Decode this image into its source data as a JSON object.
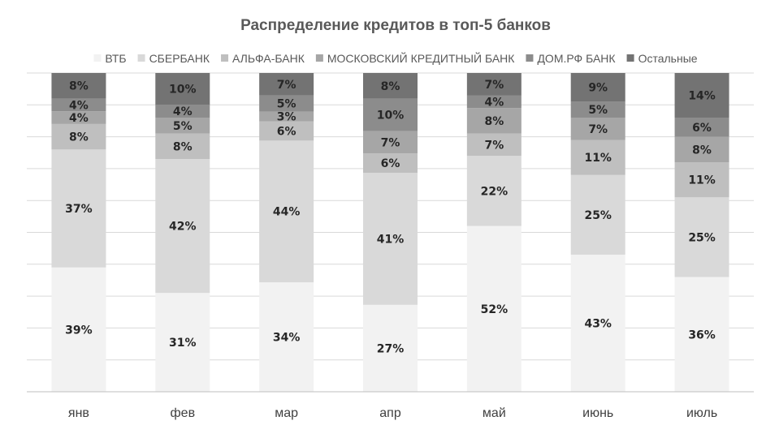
{
  "chart_data": {
    "type": "bar",
    "stacking": "percent",
    "title": "Распределение кредитов в топ-5 банков",
    "legend_position": "top",
    "grid": true,
    "ylim": [
      0,
      100
    ],
    "categories": [
      "янв",
      "фев",
      "мар",
      "апр",
      "май",
      "июнь",
      "июль"
    ],
    "series": [
      {
        "name": "ВТБ",
        "color": "#f2f2f2",
        "values": [
          39,
          31,
          34,
          27,
          52,
          43,
          36
        ],
        "labels": [
          "39%",
          "31%",
          "34%",
          "27%",
          "52%",
          "43%",
          "36%"
        ]
      },
      {
        "name": "СБЕРБАНК",
        "color": "#d9d9d9",
        "values": [
          37,
          42,
          44,
          41,
          22,
          25,
          25
        ],
        "labels": [
          "37%",
          "42%",
          "44%",
          "41%",
          "22%",
          "25%",
          "25%"
        ]
      },
      {
        "name": "АЛЬФА-БАНК",
        "color": "#bfbfbf",
        "values": [
          8,
          8,
          6,
          6,
          7,
          11,
          11
        ],
        "labels": [
          "8%",
          "8%",
          "6%",
          "6%",
          "7%",
          "11%",
          "11%"
        ]
      },
      {
        "name": "МОСКОВСКИЙ КРЕДИТНЫЙ БАНК",
        "color": "#a6a6a6",
        "values": [
          4,
          5,
          3,
          7,
          8,
          7,
          8
        ],
        "labels": [
          "4%",
          "5%",
          "3%",
          "7%",
          "8%",
          "7%",
          "8%"
        ]
      },
      {
        "name": "ДОМ.РФ БАНК",
        "color": "#8c8c8c",
        "values": [
          4,
          4,
          5,
          10,
          4,
          5,
          6
        ],
        "labels": [
          "4%",
          "4%",
          "5%",
          "10%",
          "4%",
          "5%",
          "6%"
        ]
      },
      {
        "name": "Остальные",
        "color": "#737373",
        "values": [
          8,
          10,
          7,
          8,
          7,
          9,
          14
        ],
        "labels": [
          "8%",
          "10%",
          "7%",
          "8%",
          "7%",
          "9%",
          "14%"
        ]
      }
    ]
  }
}
